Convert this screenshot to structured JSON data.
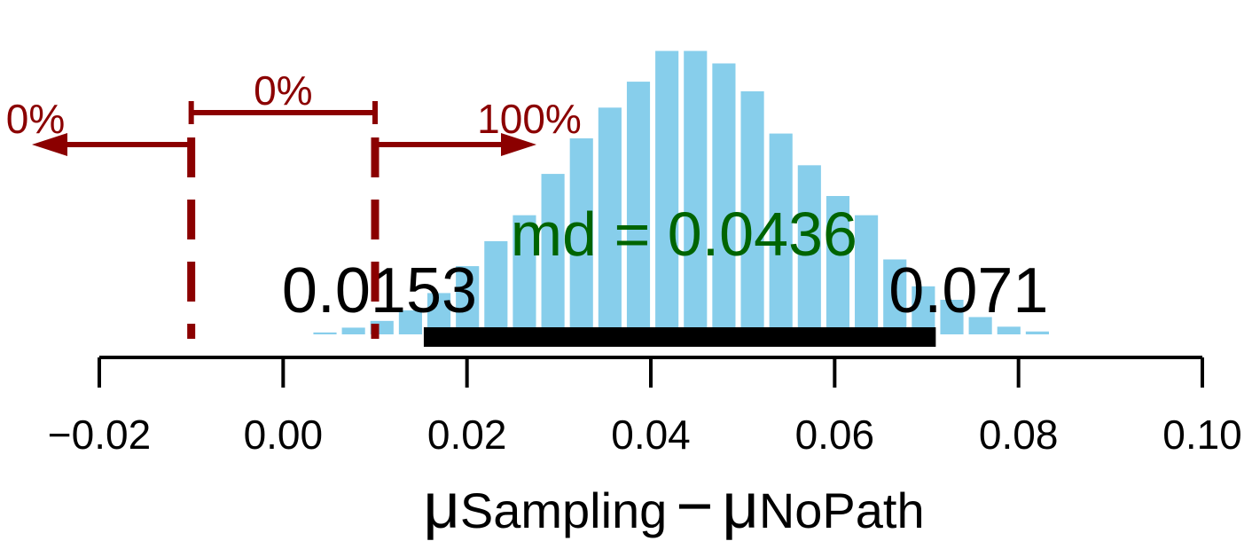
{
  "chart_data": {
    "type": "histogram",
    "bins": [
      0.003,
      0.0061,
      0.0092,
      0.0123,
      0.0154,
      0.0185,
      0.0216,
      0.0247,
      0.0278,
      0.0309,
      0.034,
      0.0371,
      0.0402,
      0.0433,
      0.0464,
      0.0495,
      0.0526,
      0.0557,
      0.0588,
      0.0619,
      0.065,
      0.0681,
      0.0712,
      0.0743,
      0.0774,
      0.0805,
      0.0836
    ],
    "values": [
      0.2,
      0.7,
      1.4,
      2.5,
      4.3,
      7.1,
      9.7,
      12.4,
      16.7,
      20.4,
      23.6,
      26.3,
      29.5,
      29.5,
      28.2,
      25.3,
      20.9,
      17.6,
      14.4,
      12.4,
      7.8,
      5.0,
      3.6,
      1.8,
      0.8,
      0.3
    ],
    "color": "#87ceeb",
    "xlim": [
      -0.02,
      0.1
    ],
    "ylim": [
      0,
      30
    ],
    "xticks": [
      {
        "value": -0.02,
        "label": "−0.02"
      },
      {
        "value": 0,
        "label": "0.00"
      },
      0.02,
      0.04,
      0.06,
      0.08,
      {
        "value": 0.1,
        "label": "0.10"
      }
    ],
    "xlabel_parts": [
      "μ",
      "Sampling",
      "−",
      "μ",
      "NoPath"
    ],
    "mode": {
      "value": 0.0436,
      "label": "md = 0.0436"
    },
    "mode_color": "#006400",
    "hdi": [
      0.0153,
      0.071
    ],
    "rope": [
      -0.01,
      0.01
    ],
    "rope_color": "#8b0000",
    "rope_pcts": [
      {
        "value": 0,
        "label": "0%"
      },
      {
        "value": 0,
        "label": "0%"
      },
      {
        "value": 100,
        "label": "100%"
      }
    ]
  }
}
